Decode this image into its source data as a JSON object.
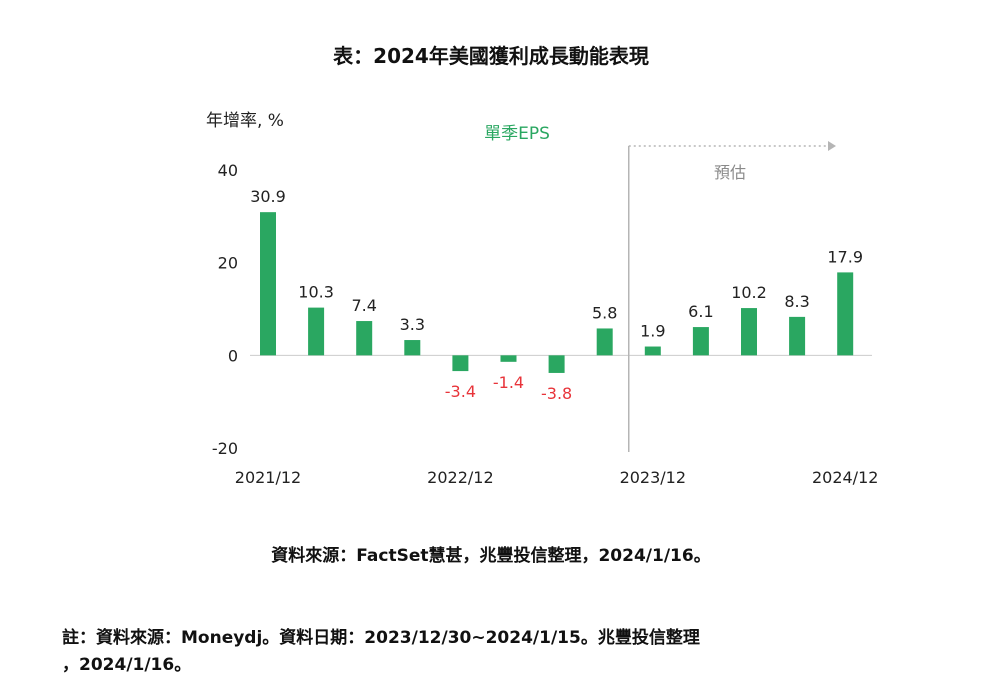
{
  "title": "表：2024年美國獲利成長動能表現",
  "chart_data": {
    "type": "bar",
    "ylabel": "年增率, %",
    "legend": "單季EPS",
    "ylim": [
      -20,
      40
    ],
    "yticks": [
      40,
      20,
      0,
      -20
    ],
    "x_tick_labels": [
      "2021/12",
      "2022/12",
      "2023/12",
      "2024/12"
    ],
    "x_tick_indices": [
      0,
      4,
      8,
      12
    ],
    "values": [
      30.9,
      10.3,
      7.4,
      3.3,
      -3.4,
      -1.4,
      -3.8,
      5.8,
      1.9,
      6.1,
      10.2,
      8.3,
      17.9
    ],
    "labels": [
      "30.9",
      "10.3",
      "7.4",
      "3.3",
      "-3.4",
      "-1.4",
      "-3.8",
      "5.8",
      "1.9",
      "6.1",
      "10.2",
      "8.3",
      "17.9"
    ],
    "forecast_label": "預估",
    "forecast_start_index": 8,
    "colors": {
      "bar": "#2aa761",
      "negative_label": "#e8343a",
      "divider": "#b5b5b5",
      "label": "#222222"
    }
  },
  "source": "資料來源：FactSet慧甚，兆豐投信整理，2024/1/16。",
  "note_line1": "註：資料來源：Moneydj。資料日期：2023/12/30~2024/1/15。兆豐投信整理",
  "note_line2": "，2024/1/16。"
}
